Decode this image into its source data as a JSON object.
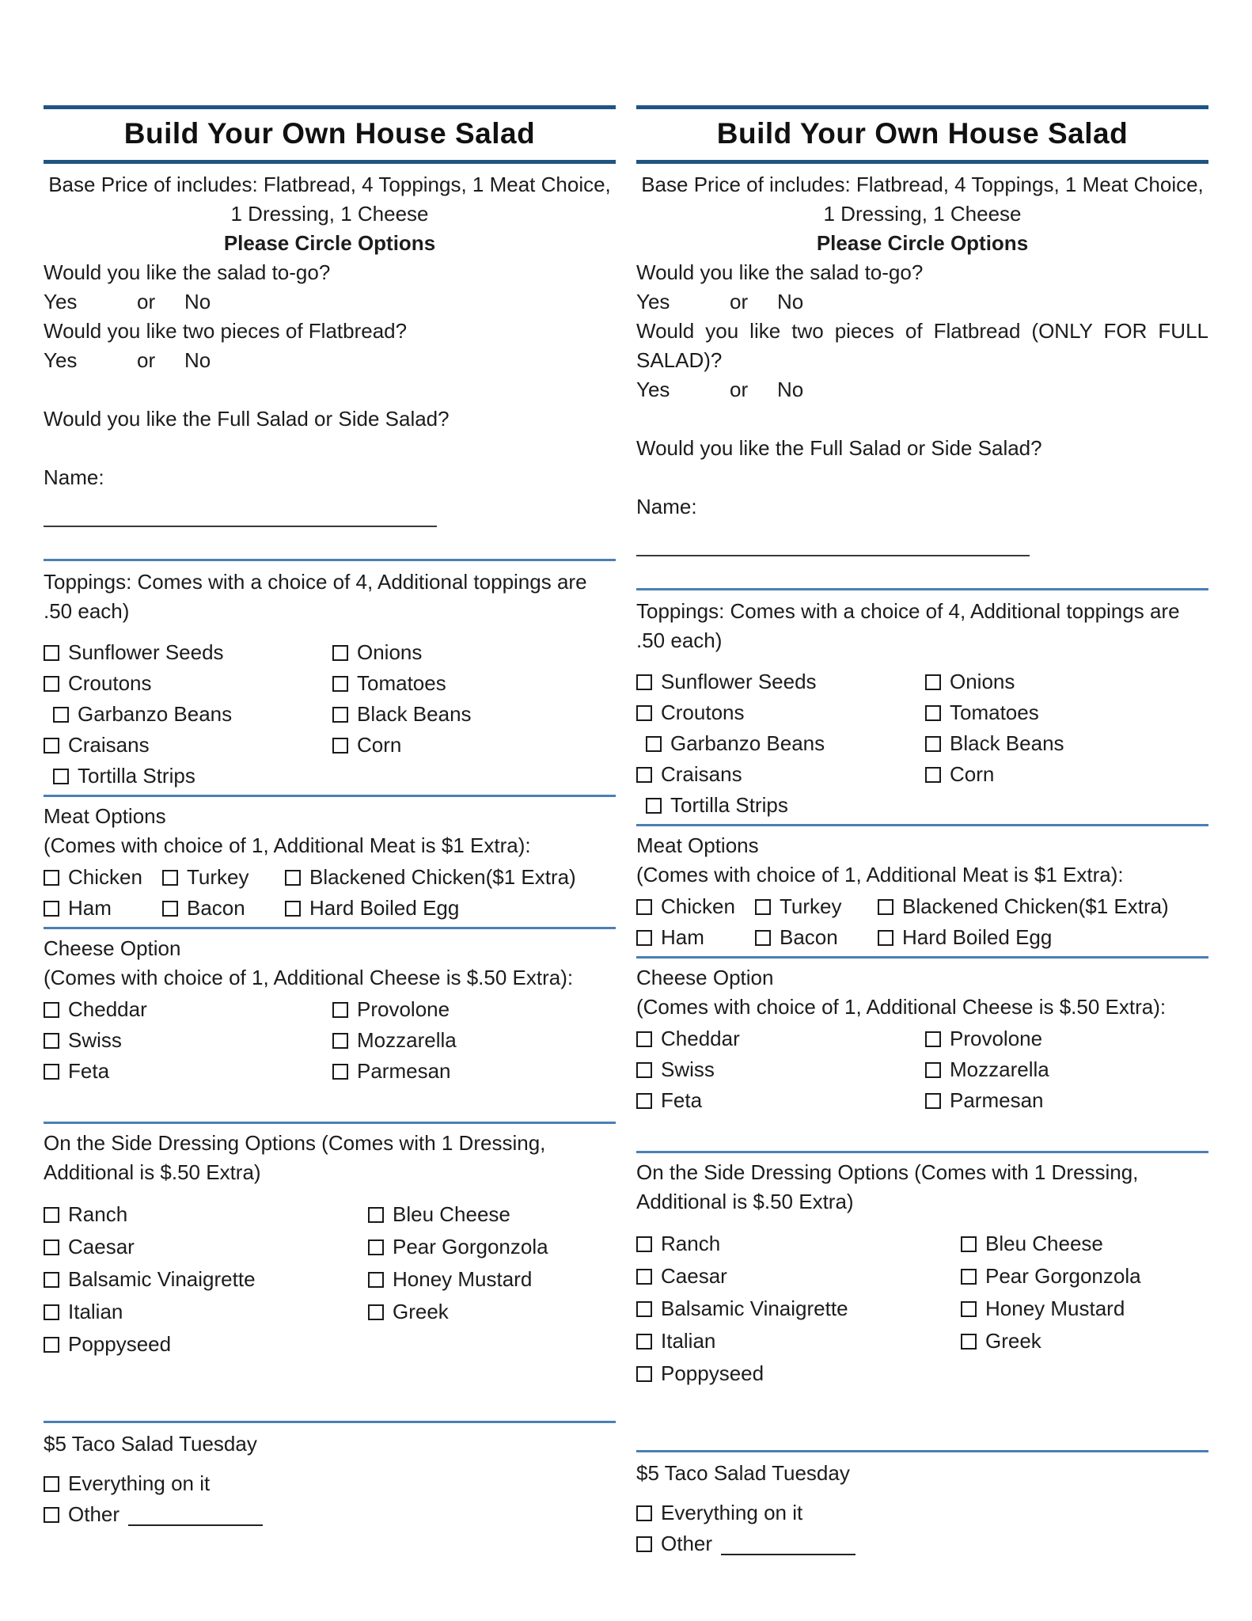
{
  "colors": {
    "title_rule": "#1f5582",
    "section_divider": "#4a7fb5",
    "text": "#1c1c1c"
  },
  "columns": [
    {
      "title": "Build Your Own House Salad",
      "base_price": "Base Price of includes: Flatbread, 4 Toppings, 1 Meat Choice, 1 Dressing, 1 Cheese",
      "please_circle": "Please Circle Options",
      "q_togo": "Would you like the salad to-go?",
      "yes": "Yes",
      "or": "or",
      "no": "No",
      "q_flatbread": "Would you like two pieces of Flatbread?",
      "q_full_or_side": "Would you like the Full Salad or Side Salad?",
      "name_label": "Name:",
      "toppings_header": "Toppings: Comes with a choice of 4, Additional toppings are .50 each)",
      "toppings_rows": [
        {
          "left": "Sunflower Seeds",
          "right": "Onions"
        },
        {
          "left": "Croutons",
          "right": "Tomatoes"
        },
        {
          "left": "Garbanzo Beans",
          "right": "Black Beans",
          "indent": true
        },
        {
          "left": "Craisans",
          "right": "Corn"
        },
        {
          "left": "Tortilla Strips",
          "right": "",
          "indent": true
        }
      ],
      "meat_header": "Meat Options",
      "meat_sub": "(Comes with choice of 1, Additional Meat is $1 Extra):",
      "meat_rows": [
        {
          "0": "Chicken",
          "1": "Turkey",
          "2": "Blackened Chicken($1 Extra)"
        },
        {
          "0": "Ham",
          "1": "Bacon",
          "2": "Hard Boiled Egg"
        }
      ],
      "cheese_header": "Cheese Option",
      "cheese_sub": "(Comes with choice of 1, Additional Cheese is $.50 Extra):",
      "cheese_rows": [
        {
          "left": "Cheddar",
          "right": "Provolone"
        },
        {
          "left": "Swiss",
          "right": "Mozzarella"
        },
        {
          "left": "Feta",
          "right": "Parmesan"
        }
      ],
      "dressing_header": "On the Side Dressing Options (Comes with 1 Dressing, Additional is $.50 Extra)",
      "dressing_rows": [
        {
          "left": "Ranch",
          "right": "Bleu Cheese"
        },
        {
          "left": "Caesar",
          "right": "Pear Gorgonzola"
        },
        {
          "left": "Balsamic Vinaigrette",
          "right": "Honey Mustard"
        },
        {
          "left": "Italian",
          "right": "Greek"
        },
        {
          "left": "Poppyseed",
          "right": ""
        }
      ],
      "taco_header": "$5 Taco Salad Tuesday",
      "taco_rows": [
        {
          "left": "Everything on it",
          "right": ""
        }
      ],
      "other_label": "Other"
    },
    {
      "title": "Build Your Own House Salad",
      "base_price": "Base Price of includes: Flatbread, 4 Toppings, 1 Meat Choice, 1 Dressing, 1 Cheese",
      "please_circle": "Please Circle Options",
      "q_togo": "Would you like the salad to-go?",
      "yes": "Yes",
      "or": "or",
      "no": "No",
      "q_flatbread": "Would you like two pieces of Flatbread (ONLY FOR FULL SALAD)?",
      "q_full_or_side": "Would you like the Full Salad or Side Salad?",
      "name_label": "Name:",
      "toppings_header": "Toppings: Comes with a choice of 4, Additional toppings are .50 each)",
      "toppings_rows": [
        {
          "left": "Sunflower Seeds",
          "right": "Onions"
        },
        {
          "left": "Croutons",
          "right": "Tomatoes"
        },
        {
          "left": "Garbanzo Beans",
          "right": "Black Beans",
          "indent": true
        },
        {
          "left": "Craisans",
          "right": "Corn"
        },
        {
          "left": "Tortilla Strips",
          "right": "",
          "indent": true
        }
      ],
      "meat_header": "Meat Options",
      "meat_sub": "(Comes with choice of 1, Additional Meat is $1 Extra):",
      "meat_rows": [
        {
          "0": "Chicken",
          "1": "Turkey",
          "2": "Blackened Chicken($1 Extra)"
        },
        {
          "0": "Ham",
          "1": "Bacon",
          "2": "Hard Boiled Egg"
        }
      ],
      "cheese_header": "Cheese Option",
      "cheese_sub": "(Comes with choice of 1, Additional Cheese is $.50 Extra):",
      "cheese_rows": [
        {
          "left": "Cheddar",
          "right": "Provolone"
        },
        {
          "left": "Swiss",
          "right": "Mozzarella"
        },
        {
          "left": "Feta",
          "right": "Parmesan"
        }
      ],
      "dressing_header": "On the Side Dressing Options (Comes with 1 Dressing, Additional is $.50 Extra)",
      "dressing_rows": [
        {
          "left": "Ranch",
          "right": "Bleu Cheese"
        },
        {
          "left": "Caesar",
          "right": "Pear Gorgonzola"
        },
        {
          "left": "Balsamic Vinaigrette",
          "right": "Honey Mustard"
        },
        {
          "left": "Italian",
          "right": "Greek"
        },
        {
          "left": "Poppyseed",
          "right": ""
        }
      ],
      "taco_header": "$5 Taco Salad Tuesday",
      "taco_rows": [
        {
          "left": "Everything on it",
          "right": ""
        }
      ],
      "other_label": "Other"
    }
  ]
}
